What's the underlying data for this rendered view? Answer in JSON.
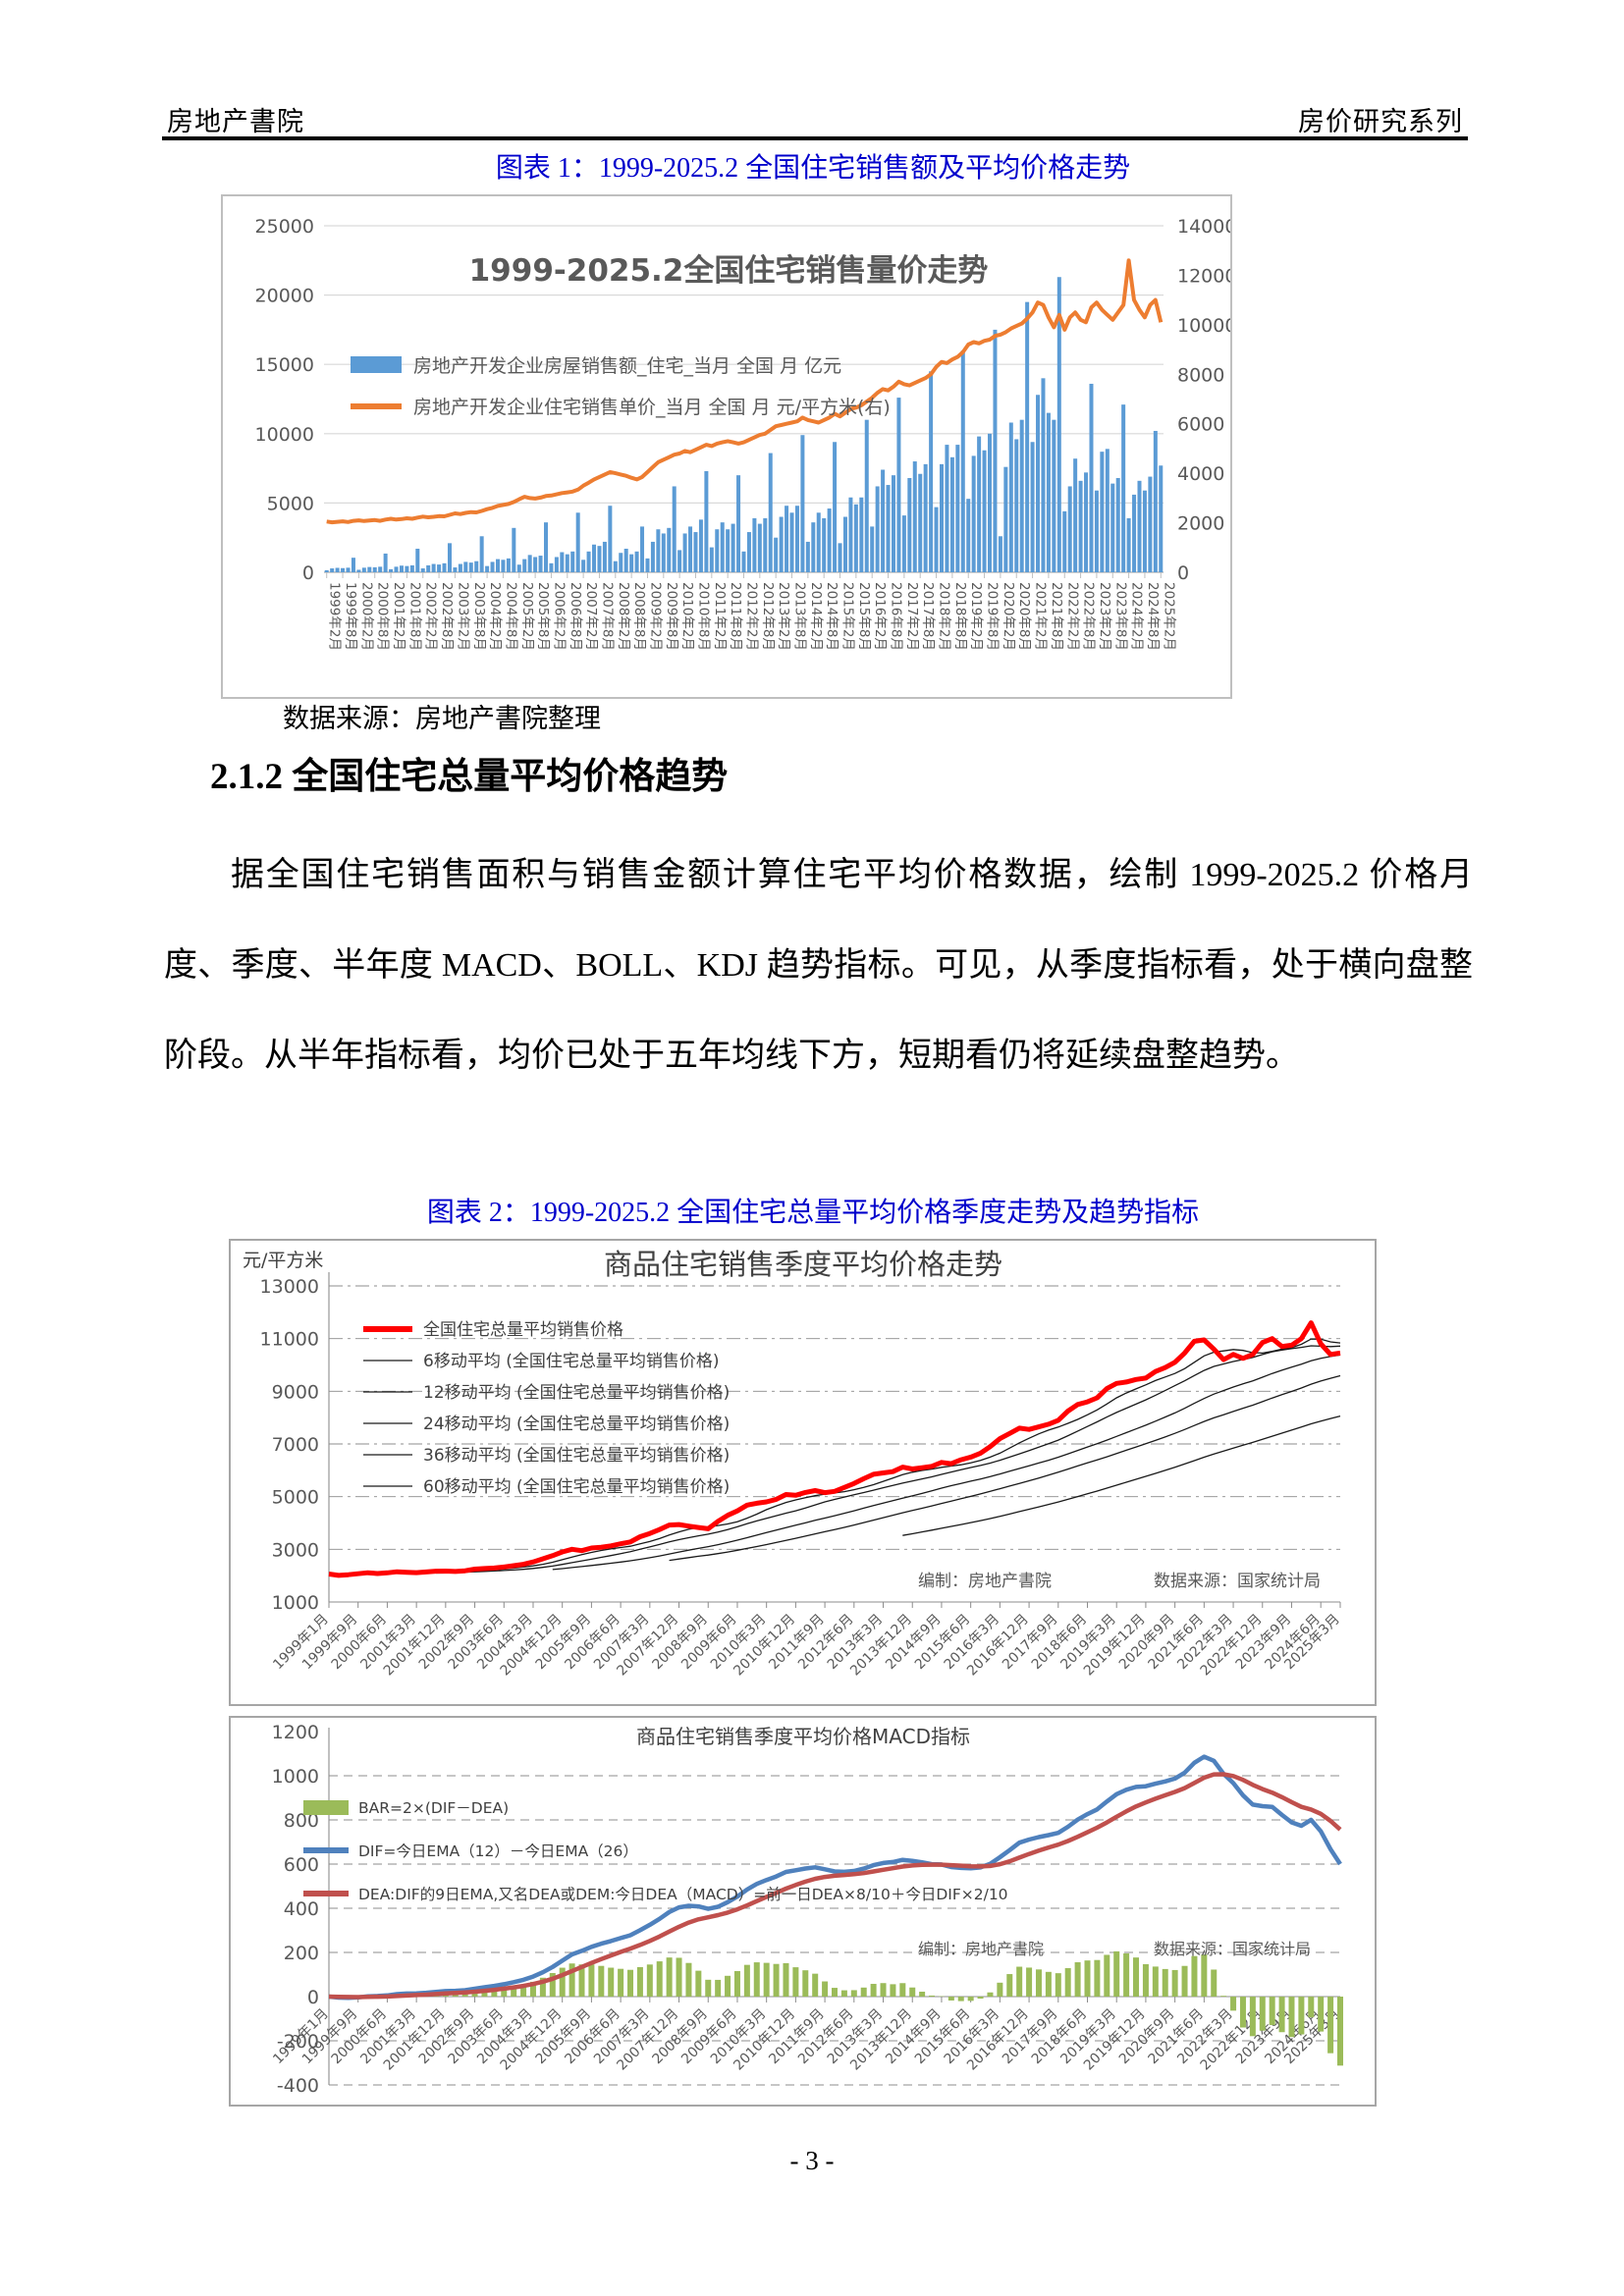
{
  "header": {
    "left": "房地产書院",
    "right": "房价研究系列"
  },
  "figure1": {
    "caption": "图表 1：1999-2025.2 全国住宅销售额及平均价格走势",
    "source_note": "数据来源：房地产書院整理"
  },
  "section": {
    "heading": "2.1.2 全国住宅总量平均价格趋势",
    "paragraph": "据全国住宅销售面积与销售金额计算住宅平均价格数据，绘制 1999-2025.2 价格月度、季度、半年度 MACD、BOLL、KDJ 趋势指标。可见，从季度指标看，处于横向盘整阶段。从半年指标看，均价已处于五年均线下方，短期看仍将延续盘整趋势。"
  },
  "figure2": {
    "caption": "图表 2：1999-2025.2 全国住宅总量平均价格季度走势及趋势指标"
  },
  "page": {
    "number_label": "- 3 -"
  },
  "colors": {
    "caption_blue": "#0000CC",
    "bar_blue": "#5B9BD5",
    "line_orange": "#ED7D31",
    "price_red": "#FF0000",
    "ma_black": "#1a1a1a",
    "macd_dif_blue": "#4F81BD",
    "macd_dea_red": "#C0504D",
    "macd_bar_green": "#9BBB59"
  },
  "chart_data": [
    {
      "id": "figure1",
      "type": "bar",
      "title": "1999-2025.2全国住宅销售量价走势",
      "sample_step_months": 2,
      "ylim_left": [
        0,
        25000
      ],
      "ytick_left_step": 5000,
      "ylim_right": [
        0,
        14000
      ],
      "ytick_right_step": 2000,
      "x_tick_labels": [
        "1999年2月",
        "1999年8月",
        "2000年2月",
        "2000年8月",
        "2001年2月",
        "2001年8月",
        "2002年2月",
        "2002年8月",
        "2003年2月",
        "2003年8月",
        "2004年2月",
        "2004年8月",
        "2005年2月",
        "2005年8月",
        "2006年2月",
        "2006年8月",
        "2007年2月",
        "2007年8月",
        "2008年2月",
        "2008年8月",
        "2009年2月",
        "2009年8月",
        "2010年2月",
        "2010年8月",
        "2011年2月",
        "2011年8月",
        "2012年2月",
        "2012年8月",
        "2013年2月",
        "2013年8月",
        "2014年2月",
        "2014年8月",
        "2015年2月",
        "2015年8月",
        "2016年2月",
        "2016年8月",
        "2017年2月",
        "2017年8月",
        "2018年2月",
        "2018年8月",
        "2019年2月",
        "2019年8月",
        "2020年2月",
        "2020年8月",
        "2021年2月",
        "2021年8月",
        "2022年2月",
        "2022年8月",
        "2023年2月",
        "2023年8月",
        "2024年2月",
        "2024年8月",
        "2025年2月"
      ],
      "series": [
        {
          "name": "房地产开发企业房屋销售额_住宅_当月 全国 月 亿元",
          "type": "bar",
          "axis": "left",
          "color": "#5B9BD5",
          "values": [
            150,
            280,
            320,
            300,
            330,
            1050,
            180,
            330,
            380,
            360,
            400,
            1350,
            220,
            400,
            480,
            450,
            500,
            1700,
            280,
            500,
            600,
            560,
            650,
            2100,
            350,
            600,
            750,
            700,
            800,
            2600,
            450,
            750,
            950,
            900,
            1000,
            3200,
            550,
            950,
            1250,
            1100,
            1200,
            3600,
            650,
            1100,
            1450,
            1300,
            1500,
            4300,
            900,
            1500,
            2000,
            1900,
            2200,
            4800,
            800,
            1400,
            1700,
            1300,
            1500,
            3300,
            1000,
            2200,
            3100,
            2800,
            3200,
            6200,
            1600,
            2800,
            3300,
            2900,
            3800,
            7300,
            1800,
            3100,
            3600,
            3100,
            3500,
            7000,
            1500,
            2900,
            3900,
            3500,
            3900,
            8600,
            2500,
            4000,
            4800,
            4300,
            4800,
            9900,
            2200,
            3600,
            4300,
            3900,
            4600,
            9400,
            2100,
            4000,
            5400,
            4900,
            5400,
            11000,
            3300,
            6200,
            7400,
            6300,
            7000,
            12600,
            4100,
            6800,
            8000,
            7100,
            7800,
            14500,
            4700,
            7800,
            9200,
            8300,
            9200,
            16000,
            5300,
            8400,
            9800,
            8800,
            10000,
            17500,
            2600,
            7600,
            10800,
            9600,
            11000,
            19500,
            9400,
            12800,
            14000,
            11500,
            11000,
            21300,
            4400,
            6200,
            8200,
            6600,
            7200,
            13600,
            5900,
            8700,
            8900,
            6400,
            6800,
            12100,
            3900,
            5600,
            6600,
            5900,
            6900,
            10200,
            7700
          ]
        },
        {
          "name": "房地产开发企业住宅销售单价_当月 全国 月 元/平方米(右)",
          "type": "line",
          "axis": "right",
          "color": "#ED7D31",
          "values": [
            2050,
            2020,
            2040,
            2060,
            2030,
            2080,
            2100,
            2070,
            2090,
            2110,
            2080,
            2130,
            2160,
            2130,
            2150,
            2180,
            2160,
            2210,
            2250,
            2220,
            2240,
            2270,
            2260,
            2320,
            2380,
            2350,
            2400,
            2430,
            2420,
            2480,
            2550,
            2600,
            2680,
            2720,
            2760,
            2840,
            2950,
            3050,
            3000,
            2980,
            3020,
            3080,
            3100,
            3150,
            3200,
            3230,
            3260,
            3340,
            3500,
            3620,
            3750,
            3850,
            3950,
            4050,
            4000,
            3950,
            3900,
            3820,
            3750,
            3850,
            4050,
            4250,
            4450,
            4550,
            4650,
            4750,
            4800,
            4900,
            4850,
            4950,
            5050,
            5150,
            5100,
            5200,
            5250,
            5300,
            5250,
            5200,
            5250,
            5350,
            5450,
            5550,
            5600,
            5750,
            5900,
            5950,
            6000,
            6050,
            6100,
            6250,
            6150,
            6100,
            6050,
            6150,
            6250,
            6400,
            6300,
            6450,
            6600,
            6650,
            6750,
            6900,
            7050,
            7250,
            7400,
            7350,
            7500,
            7700,
            7600,
            7550,
            7650,
            7750,
            7850,
            8000,
            8300,
            8500,
            8450,
            8600,
            8700,
            8900,
            9200,
            9300,
            9250,
            9350,
            9400,
            9550,
            9600,
            9700,
            9850,
            9950,
            10050,
            10250,
            10500,
            10900,
            10800,
            10300,
            9900,
            10400,
            9800,
            10300,
            10500,
            10200,
            10100,
            10700,
            10900,
            10600,
            10400,
            10200,
            10500,
            10800,
            12600,
            11000,
            10600,
            10300,
            10800,
            11000,
            10100
          ]
        }
      ]
    },
    {
      "id": "figure2-price",
      "type": "line",
      "title": "商品住宅销售季度平均价格走势",
      "unit_label": "元/平方米",
      "ylim": [
        1000,
        13000
      ],
      "ytick_step": 2000,
      "attribution": {
        "left": "编制：房地产書院",
        "right": "数据来源：国家统计局"
      },
      "x_tick_labels": [
        "1999年1月",
        "1999年9月",
        "2000年6月",
        "2001年3月",
        "2001年12月",
        "2002年9月",
        "2003年6月",
        "2004年3月",
        "2004年12月",
        "2005年9月",
        "2006年6月",
        "2007年3月",
        "2007年12月",
        "2008年9月",
        "2009年6月",
        "2010年3月",
        "2010年12月",
        "2011年9月",
        "2012年6月",
        "2013年3月",
        "2013年12月",
        "2014年9月",
        "2015年6月",
        "2016年3月",
        "2016年12月",
        "2017年9月",
        "2018年6月",
        "2019年3月",
        "2019年12月",
        "2020年9月",
        "2021年6月",
        "2022年3月",
        "2022年12月",
        "2023年9月",
        "2024年6月",
        "2025年3月"
      ],
      "series": [
        {
          "name": "全国住宅总量平均销售价格",
          "color": "#FF0000",
          "values": [
            2063,
            2010,
            2035,
            2073,
            2112,
            2080,
            2105,
            2148,
            2130,
            2115,
            2140,
            2170,
            2175,
            2160,
            2185,
            2250,
            2270,
            2290,
            2330,
            2380,
            2430,
            2520,
            2640,
            2760,
            2900,
            3000,
            2950,
            3050,
            3080,
            3130,
            3210,
            3280,
            3480,
            3600,
            3750,
            3920,
            3940,
            3880,
            3830,
            3780,
            4060,
            4290,
            4460,
            4680,
            4750,
            4800,
            4900,
            5080,
            5050,
            5160,
            5230,
            5150,
            5200,
            5350,
            5500,
            5680,
            5850,
            5900,
            5950,
            6120,
            6050,
            6100,
            6150,
            6300,
            6250,
            6400,
            6500,
            6650,
            6900,
            7200,
            7400,
            7600,
            7550,
            7650,
            7750,
            7900,
            8250,
            8500,
            8600,
            8750,
            9100,
            9300,
            9350,
            9450,
            9500,
            9750,
            9900,
            10100,
            10450,
            10900,
            10950,
            10600,
            10200,
            10400,
            10250,
            10400,
            10850,
            11000,
            10700,
            10750,
            11000,
            11600,
            10800,
            10400,
            10450
          ]
        }
      ],
      "moving_averages": [
        {
          "name": "6移动平均 (全国住宅总量平均销售价格)",
          "window": 6
        },
        {
          "name": "12移动平均 (全国住宅总量平均销售价格)",
          "window": 12
        },
        {
          "name": "24移动平均 (全国住宅总量平均销售价格)",
          "window": 24
        },
        {
          "name": "36移动平均 (全国住宅总量平均销售价格)",
          "window": 36
        },
        {
          "name": "60移动平均 (全国住宅总量平均销售价格)",
          "window": 60
        }
      ]
    },
    {
      "id": "figure2-macd",
      "type": "macd",
      "title": "商品住宅销售季度平均价格MACD指标",
      "ylim": [
        -400,
        1200
      ],
      "ytick_step": 200,
      "attribution": {
        "left": "编制：房地产書院",
        "right": "数据来源：国家统计局"
      },
      "legend": [
        {
          "name": "BAR=2×(DIF－DEA)",
          "color": "#9BBB59",
          "type": "bar"
        },
        {
          "name": "DIF=今日EMA（12）－今日EMA（26）",
          "color": "#4F81BD",
          "type": "line"
        },
        {
          "name": "DEA:DIF的9日EMA,又名DEA或DEM:今日DEA（MACD）=前一日DEA×8/10＋今日DIF×2/10",
          "color": "#C0504D",
          "type": "line"
        }
      ],
      "derived_from": "figure2-price quarterly series",
      "formulas": {
        "dif": "EMA12 - EMA26",
        "dea": "DEA[t] = DEA[t-1]×8/10 + DIF[t]×2/10",
        "bar": "2×(DIF−DEA)"
      }
    }
  ]
}
